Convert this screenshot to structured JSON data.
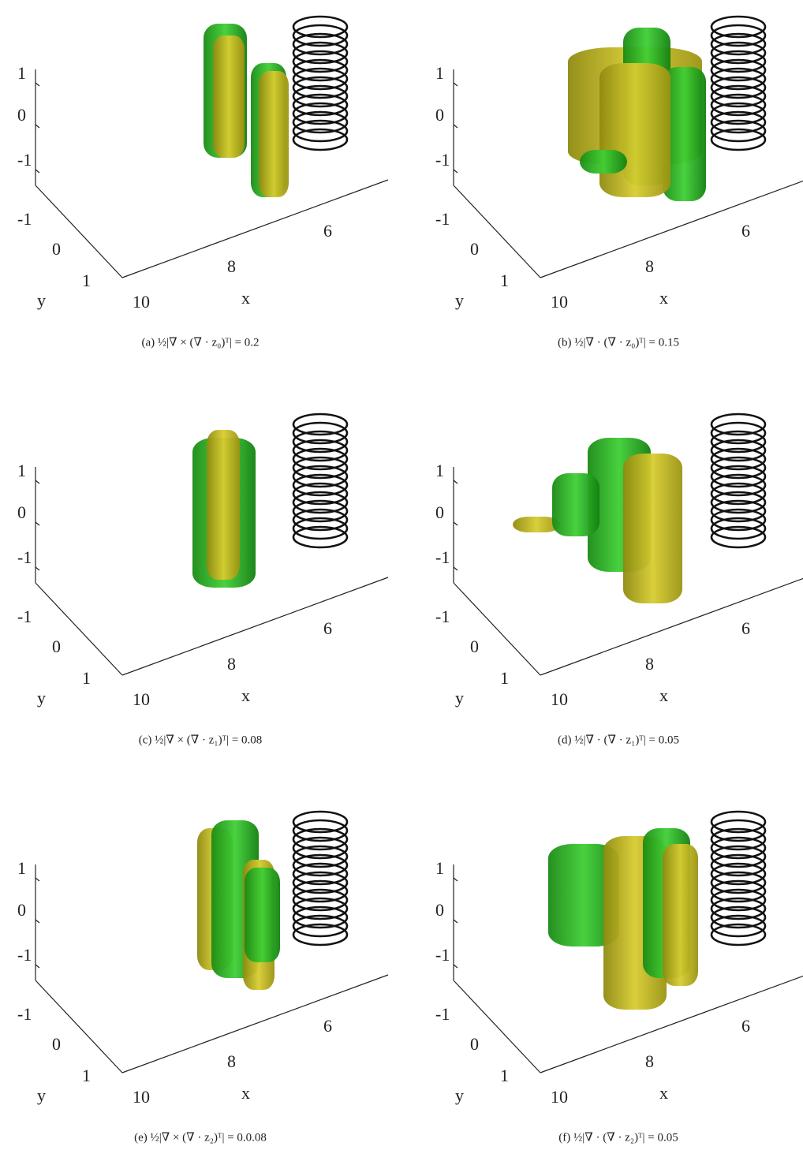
{
  "panels": [
    {
      "caption": "(a)  ½|∇ × (∇ · z₀)ᵀ| = 0.2",
      "z_ticks": [
        "1",
        "0",
        "-1"
      ],
      "y_ticks": [
        "-1",
        "0",
        "1"
      ],
      "x_ticks": [
        "10",
        "8",
        "6"
      ],
      "x_label": "x",
      "y_label": "y"
    },
    {
      "caption": "(b)  ½|∇ · (∇ · z₀)ᵀ| = 0.15",
      "z_ticks": [
        "1",
        "0",
        "-1"
      ],
      "y_ticks": [
        "-1",
        "0",
        "1"
      ],
      "x_ticks": [
        "10",
        "8",
        "6"
      ],
      "x_label": "x",
      "y_label": "y"
    },
    {
      "caption": "(c)  ½|∇ × (∇ · z₁)ᵀ| = 0.08",
      "z_ticks": [
        "1",
        "0",
        "-1"
      ],
      "y_ticks": [
        "-1",
        "0",
        "1"
      ],
      "x_ticks": [
        "10",
        "8",
        "6"
      ],
      "x_label": "x",
      "y_label": "y"
    },
    {
      "caption": "(d)  ½|∇ · (∇ · z₁)ᵀ| = 0.05",
      "z_ticks": [
        "1",
        "0",
        "-1"
      ],
      "y_ticks": [
        "-1",
        "0",
        "1"
      ],
      "x_ticks": [
        "10",
        "8",
        "6"
      ],
      "x_label": "x",
      "y_label": "y"
    },
    {
      "caption": "(e)  ½|∇ × (∇ · z₂)ᵀ| = 0.0.08",
      "z_ticks": [
        "1",
        "0",
        "-1"
      ],
      "y_ticks": [
        "-1",
        "0",
        "1"
      ],
      "x_ticks": [
        "10",
        "8",
        "6"
      ],
      "x_label": "x",
      "y_label": "y"
    },
    {
      "caption": "(f)  ½|∇ · (∇ · z₂)ᵀ| = 0.05",
      "z_ticks": [
        "1",
        "0",
        "-1"
      ],
      "y_ticks": [
        "-1",
        "0",
        "1"
      ],
      "x_ticks": [
        "10",
        "8",
        "6"
      ],
      "x_label": "x",
      "y_label": "y"
    }
  ]
}
